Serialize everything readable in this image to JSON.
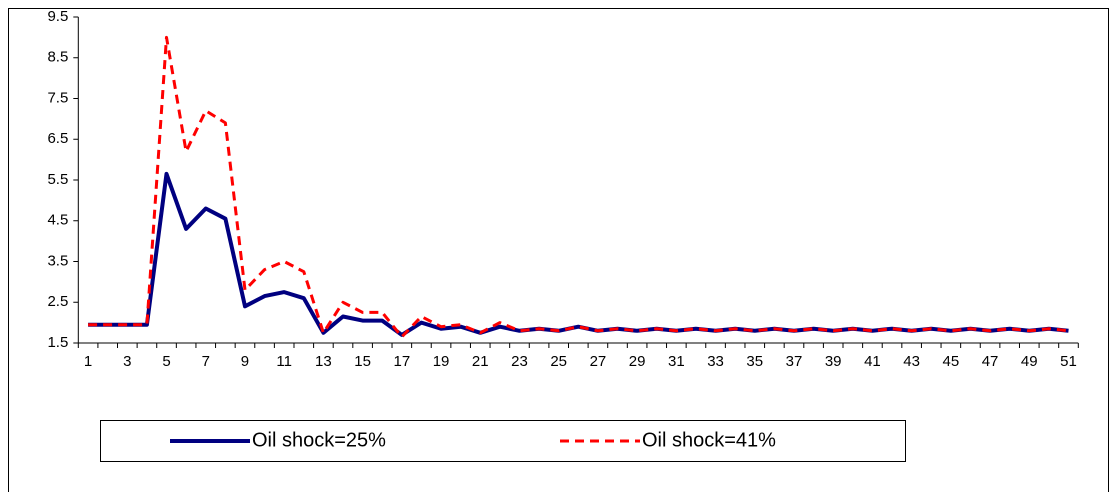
{
  "chart_data": {
    "type": "line",
    "categories": [
      1,
      null,
      3,
      null,
      5,
      null,
      7,
      null,
      9,
      null,
      11,
      null,
      13,
      null,
      15,
      null,
      17,
      null,
      19,
      null,
      21,
      null,
      23,
      null,
      25,
      null,
      27,
      null,
      29,
      null,
      31,
      null,
      33,
      null,
      35,
      null,
      37,
      null,
      39,
      null,
      41,
      null,
      43,
      null,
      45,
      null,
      47,
      null,
      49,
      null,
      51
    ],
    "series": [
      {
        "name": "Oil shock=25%",
        "color": "#000080",
        "dash": false,
        "values": [
          1.95,
          1.95,
          1.95,
          1.95,
          5.65,
          4.3,
          4.8,
          4.55,
          2.4,
          2.65,
          2.75,
          2.6,
          1.75,
          2.15,
          2.05,
          2.05,
          1.7,
          2.0,
          1.85,
          1.9,
          1.75,
          1.9,
          1.8,
          1.85,
          1.8,
          1.9,
          1.8,
          1.85,
          1.8,
          1.85,
          1.8,
          1.85,
          1.8,
          1.85,
          1.8,
          1.85,
          1.8,
          1.85,
          1.8,
          1.85,
          1.8,
          1.85,
          1.8,
          1.85,
          1.8,
          1.85,
          1.8,
          1.85,
          1.8,
          1.85,
          1.8
        ]
      },
      {
        "name": "Oil shock=41%",
        "color": "#ff0000",
        "dash": true,
        "values": [
          1.95,
          1.95,
          1.95,
          1.95,
          9.0,
          6.2,
          7.2,
          6.9,
          2.8,
          3.3,
          3.5,
          3.25,
          1.75,
          2.5,
          2.25,
          2.25,
          1.65,
          2.15,
          1.9,
          1.95,
          1.75,
          2.0,
          1.8,
          1.85,
          1.8,
          1.9,
          1.8,
          1.85,
          1.8,
          1.85,
          1.8,
          1.85,
          1.8,
          1.85,
          1.8,
          1.85,
          1.8,
          1.85,
          1.8,
          1.85,
          1.8,
          1.85,
          1.8,
          1.85,
          1.8,
          1.85,
          1.8,
          1.85,
          1.8,
          1.85,
          1.8
        ]
      }
    ],
    "ylim": [
      1.5,
      9.5
    ],
    "yticks": [
      1.5,
      2.5,
      3.5,
      4.5,
      5.5,
      6.5,
      7.5,
      8.5,
      9.5
    ],
    "grid": false
  }
}
